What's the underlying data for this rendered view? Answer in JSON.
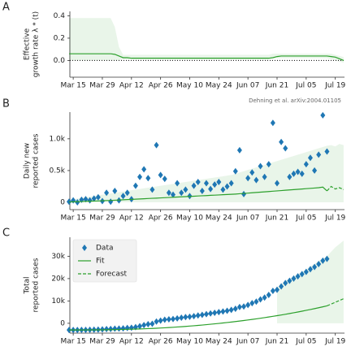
{
  "chart_data": [
    {
      "type": "line",
      "label": "A",
      "ylabel": [
        "Effective",
        "growth rate λ * (t)"
      ],
      "categories": [
        "Mar 13",
        "Mar 15",
        "Mar 17",
        "Mar 19",
        "Mar 21",
        "Mar 23",
        "Mar 25",
        "Mar 27",
        "Mar 29",
        "Mar 31",
        "Apr 02",
        "Apr 04",
        "Apr 06",
        "Apr 08",
        "Apr 10",
        "Apr 12",
        "Apr 14",
        "Apr 16",
        "Apr 18",
        "Apr 20",
        "Apr 22",
        "Apr 24",
        "Apr 26",
        "Apr 28",
        "Apr 30",
        "May 02",
        "May 04",
        "May 06",
        "May 08",
        "May 10",
        "May 12",
        "May 14",
        "May 16",
        "May 18",
        "May 20",
        "May 22",
        "May 24",
        "May 26",
        "May 28",
        "May 30",
        "Jun 01",
        "Jun 03",
        "Jun 05",
        "Jun 07",
        "Jun 09",
        "Jun 11",
        "Jun 13",
        "Jun 15",
        "Jun 17",
        "Jun 19",
        "Jun 21",
        "Jun 23",
        "Jun 25",
        "Jun 27",
        "Jun 29",
        "Jul 01",
        "Jul 03",
        "Jul 05",
        "Jul 07",
        "Jul 09",
        "Jul 11",
        "Jul 13",
        "Jul 15",
        "Jul 17",
        "Jul 19",
        "Jul 21",
        "Jul 23"
      ],
      "xticks": [
        "Mar 15",
        "Mar 29",
        "Apr 12",
        "Apr 26",
        "May 10",
        "May 24",
        "Jun 07",
        "Jun 21",
        "Jul 05",
        "Jul 19"
      ],
      "ylim": [
        -0.15,
        0.44
      ],
      "yticks": [
        {
          "value": 0,
          "label": "0.0"
        },
        {
          "value": 0.2,
          "label": "0.2"
        },
        {
          "value": 0.4,
          "label": "0.4"
        }
      ],
      "hline": 0,
      "band": {
        "color": "#2ca02c",
        "upper": [
          0.38,
          0.38,
          0.38,
          0.38,
          0.38,
          0.38,
          0.38,
          0.38,
          0.38,
          0.38,
          0.38,
          0.3,
          0.12,
          0.05,
          0.05,
          0.05,
          0.05,
          0.05,
          0.05,
          0.05,
          0.05,
          0.05,
          0.05,
          0.05,
          0.05,
          0.05,
          0.05,
          0.05,
          0.05,
          0.05,
          0.05,
          0.05,
          0.05,
          0.05,
          0.05,
          0.05,
          0.05,
          0.05,
          0.05,
          0.05,
          0.05,
          0.05,
          0.05,
          0.05,
          0.05,
          0.05,
          0.05,
          0.05,
          0.05,
          0.06,
          0.06,
          0.06,
          0.06,
          0.06,
          0.06,
          0.06,
          0.06,
          0.06,
          0.06,
          0.06,
          0.06,
          0.06,
          0.06,
          0.06,
          0.05,
          0.04,
          0.03
        ],
        "lower": [
          0,
          0,
          0,
          0,
          0,
          0,
          0,
          0,
          0,
          0,
          0,
          0,
          0,
          0.01,
          0.01,
          0.01,
          0.01,
          0.01,
          0.01,
          0.01,
          0.01,
          0.01,
          0.01,
          0.01,
          0.01,
          0.01,
          0.01,
          0.01,
          0.01,
          0.01,
          0.01,
          0.01,
          0.01,
          0.01,
          0.01,
          0.01,
          0.01,
          0.01,
          0.01,
          0.01,
          0.01,
          0.01,
          0.01,
          0.01,
          0.01,
          0.01,
          0.01,
          0.01,
          0.01,
          0.02,
          0.02,
          0.02,
          0.02,
          0.02,
          0.02,
          0.02,
          0.02,
          0.02,
          0.02,
          0.02,
          0.02,
          0.02,
          0.02,
          0.01,
          0,
          -0.01,
          -0.02
        ]
      },
      "series": [
        {
          "kind": "line",
          "color": "#2ca02c",
          "values": [
            0.06,
            0.06,
            0.06,
            0.06,
            0.06,
            0.06,
            0.06,
            0.06,
            0.06,
            0.06,
            0.06,
            0.055,
            0.04,
            0.025,
            0.025,
            0.02,
            0.02,
            0.02,
            0.02,
            0.02,
            0.02,
            0.02,
            0.02,
            0.02,
            0.02,
            0.02,
            0.02,
            0.02,
            0.02,
            0.02,
            0.02,
            0.02,
            0.02,
            0.02,
            0.02,
            0.02,
            0.02,
            0.02,
            0.02,
            0.02,
            0.02,
            0.02,
            0.02,
            0.02,
            0.02,
            0.02,
            0.02,
            0.02,
            0.02,
            0.025,
            0.035,
            0.04,
            0.04,
            0.04,
            0.04,
            0.04,
            0.04,
            0.04,
            0.04,
            0.04,
            0.04,
            0.04,
            0.04,
            0.035,
            0.03,
            0.015,
            0
          ]
        }
      ]
    },
    {
      "type": "scatter",
      "label": "B",
      "ylabel": [
        "Daily new",
        "reported cases"
      ],
      "annotation": "Dehning et al. arXiv:2004.01105",
      "categories": [
        "Mar 13",
        "Mar 15",
        "Mar 17",
        "Mar 19",
        "Mar 21",
        "Mar 23",
        "Mar 25",
        "Mar 27",
        "Mar 29",
        "Mar 31",
        "Apr 02",
        "Apr 04",
        "Apr 06",
        "Apr 08",
        "Apr 10",
        "Apr 12",
        "Apr 14",
        "Apr 16",
        "Apr 18",
        "Apr 20",
        "Apr 22",
        "Apr 24",
        "Apr 26",
        "Apr 28",
        "Apr 30",
        "May 02",
        "May 04",
        "May 06",
        "May 08",
        "May 10",
        "May 12",
        "May 14",
        "May 16",
        "May 18",
        "May 20",
        "May 22",
        "May 24",
        "May 26",
        "May 28",
        "May 30",
        "Jun 01",
        "Jun 03",
        "Jun 05",
        "Jun 07",
        "Jun 09",
        "Jun 11",
        "Jun 13",
        "Jun 15",
        "Jun 17",
        "Jun 19",
        "Jun 21",
        "Jun 23",
        "Jun 25",
        "Jun 27",
        "Jun 29",
        "Jul 01",
        "Jul 03",
        "Jul 05",
        "Jul 07",
        "Jul 09",
        "Jul 11",
        "Jul 13",
        "Jul 15",
        "Jul 17",
        "Jul 19",
        "Jul 21",
        "Jul 23"
      ],
      "xticks": [
        "Mar 15",
        "Mar 29",
        "Apr 12",
        "Apr 26",
        "May 10",
        "May 24",
        "Jun 07",
        "Jun 21",
        "Jul 05",
        "Jul 19"
      ],
      "ylim": [
        -115,
        1420
      ],
      "yticks": [
        0,
        {
          "value": 500,
          "label": "0.5k"
        },
        {
          "value": 1000,
          "label": "1.0k"
        }
      ],
      "band": {
        "color": "#2ca02c",
        "upper": [
          40,
          50,
          60,
          70,
          80,
          90,
          100,
          110,
          120,
          130,
          140,
          150,
          160,
          170,
          180,
          190,
          200,
          210,
          220,
          230,
          240,
          250,
          260,
          270,
          280,
          290,
          300,
          310,
          320,
          330,
          340,
          350,
          360,
          370,
          380,
          390,
          400,
          410,
          420,
          430,
          450,
          470,
          490,
          510,
          530,
          550,
          570,
          590,
          610,
          630,
          650,
          670,
          690,
          710,
          730,
          750,
          770,
          790,
          810,
          830,
          850,
          870,
          890,
          900,
          880,
          920,
          900
        ]
      },
      "series": [
        {
          "kind": "scatter",
          "marker": "diamond",
          "color": "#1f77b4",
          "values": [
            10,
            30,
            0,
            40,
            50,
            30,
            60,
            80,
            20,
            150,
            10,
            180,
            30,
            100,
            150,
            50,
            260,
            400,
            520,
            380,
            200,
            900,
            430,
            370,
            150,
            120,
            300,
            150,
            200,
            100,
            260,
            320,
            180,
            300,
            210,
            280,
            320,
            200,
            250,
            300,
            490,
            820,
            130,
            380,
            470,
            350,
            570,
            400,
            600,
            1250,
            300,
            950,
            850,
            400,
            450,
            480,
            450,
            600,
            700,
            500,
            750,
            1370,
            800,
            null,
            null,
            null,
            null
          ]
        },
        {
          "kind": "line",
          "color": "#2ca02c",
          "values": [
            5,
            8,
            10,
            12,
            15,
            18,
            20,
            22,
            25,
            28,
            30,
            33,
            36,
            40,
            43,
            46,
            50,
            53,
            56,
            60,
            63,
            66,
            70,
            73,
            76,
            80,
            83,
            86,
            90,
            93,
            96,
            100,
            103,
            106,
            110,
            113,
            116,
            120,
            123,
            126,
            130,
            135,
            140,
            145,
            150,
            155,
            160,
            165,
            170,
            175,
            180,
            185,
            190,
            195,
            200,
            205,
            210,
            215,
            220,
            225,
            230,
            240,
            180,
            null,
            null,
            null,
            null
          ]
        },
        {
          "kind": "line",
          "dash": true,
          "color": "#2ca02c",
          "values": [
            null,
            null,
            null,
            null,
            null,
            null,
            null,
            null,
            null,
            null,
            null,
            null,
            null,
            null,
            null,
            null,
            null,
            null,
            null,
            null,
            null,
            null,
            null,
            null,
            null,
            null,
            null,
            null,
            null,
            null,
            null,
            null,
            null,
            null,
            null,
            null,
            null,
            null,
            null,
            null,
            null,
            null,
            null,
            null,
            null,
            null,
            null,
            null,
            null,
            null,
            null,
            null,
            null,
            null,
            null,
            null,
            null,
            null,
            null,
            null,
            null,
            null,
            180,
            250,
            210,
            230,
            200
          ]
        }
      ]
    },
    {
      "type": "scatter",
      "label": "C",
      "ylabel": [
        "Total",
        "reported cases"
      ],
      "legend": "upper left",
      "categories": [
        "Mar 13",
        "Mar 15",
        "Mar 17",
        "Mar 19",
        "Mar 21",
        "Mar 23",
        "Mar 25",
        "Mar 27",
        "Mar 29",
        "Mar 31",
        "Apr 02",
        "Apr 04",
        "Apr 06",
        "Apr 08",
        "Apr 10",
        "Apr 12",
        "Apr 14",
        "Apr 16",
        "Apr 18",
        "Apr 20",
        "Apr 22",
        "Apr 24",
        "Apr 26",
        "Apr 28",
        "Apr 30",
        "May 02",
        "May 04",
        "May 06",
        "May 08",
        "May 10",
        "May 12",
        "May 14",
        "May 16",
        "May 18",
        "May 20",
        "May 22",
        "May 24",
        "May 26",
        "May 28",
        "May 30",
        "Jun 01",
        "Jun 03",
        "Jun 05",
        "Jun 07",
        "Jun 09",
        "Jun 11",
        "Jun 13",
        "Jun 15",
        "Jun 17",
        "Jun 19",
        "Jun 21",
        "Jun 23",
        "Jun 25",
        "Jun 27",
        "Jun 29",
        "Jul 01",
        "Jul 03",
        "Jul 05",
        "Jul 07",
        "Jul 09",
        "Jul 11",
        "Jul 13",
        "Jul 15",
        "Jul 17",
        "Jul 19",
        "Jul 21",
        "Jul 23"
      ],
      "xticks": [
        "Mar 15",
        "Mar 29",
        "Apr 12",
        "Apr 26",
        "May 10",
        "May 24",
        "Jun 07",
        "Jun 21",
        "Jul 05",
        "Jul 19"
      ],
      "ylim": [
        -4400,
        38500
      ],
      "yticks": [
        0,
        {
          "value": 10000,
          "label": "10k"
        },
        {
          "value": 20000,
          "label": "20k"
        },
        {
          "value": 30000,
          "label": "30k"
        }
      ],
      "band": {
        "color": "#2ca02c",
        "upper": [
          null,
          null,
          null,
          null,
          null,
          null,
          null,
          null,
          null,
          null,
          null,
          null,
          null,
          null,
          null,
          null,
          null,
          null,
          null,
          null,
          null,
          null,
          null,
          null,
          null,
          null,
          null,
          null,
          null,
          null,
          null,
          null,
          null,
          null,
          null,
          null,
          null,
          null,
          null,
          null,
          null,
          null,
          null,
          null,
          null,
          null,
          null,
          null,
          null,
          null,
          16000,
          17500,
          19000,
          20000,
          21000,
          22000,
          23000,
          24000,
          25500,
          26500,
          28000,
          29000,
          30000,
          32000,
          34000,
          35500,
          37000
        ]
      },
      "series": [
        {
          "name": "Data",
          "kind": "scatter",
          "marker": "diamond",
          "color": "#1f77b4",
          "values": [
            -3000,
            -2990,
            -2980,
            -2960,
            -2940,
            -2900,
            -2860,
            -2800,
            -2740,
            -2600,
            -2550,
            -2400,
            -2350,
            -2250,
            -2100,
            -2000,
            -1700,
            -1300,
            -800,
            -400,
            -200,
            800,
            1200,
            1600,
            1800,
            1900,
            2200,
            2500,
            2800,
            2900,
            3200,
            3500,
            3800,
            4100,
            4400,
            4700,
            5000,
            5300,
            5600,
            6000,
            6500,
            7300,
            7500,
            8200,
            9000,
            9700,
            10700,
            11500,
            12700,
            14500,
            15000,
            16500,
            18000,
            19000,
            20000,
            21000,
            22000,
            23000,
            24200,
            25200,
            26500,
            28000,
            28800,
            null,
            null,
            null,
            null
          ]
        },
        {
          "name": "Fit",
          "kind": "line",
          "color": "#2ca02c",
          "values": [
            -3000,
            -2995,
            -2990,
            -2985,
            -2975,
            -2965,
            -2950,
            -2935,
            -2915,
            -2890,
            -2860,
            -2830,
            -2790,
            -2750,
            -2700,
            -2650,
            -2590,
            -2530,
            -2460,
            -2380,
            -2300,
            -2210,
            -2110,
            -2010,
            -1900,
            -1780,
            -1660,
            -1530,
            -1390,
            -1250,
            -1100,
            -940,
            -780,
            -610,
            -430,
            -250,
            -60,
            140,
            340,
            550,
            770,
            1000,
            1240,
            1480,
            1730,
            1990,
            2260,
            2540,
            2820,
            3110,
            3410,
            3720,
            4040,
            4370,
            4710,
            5060,
            5420,
            5790,
            6170,
            6560,
            6960,
            7370,
            7790,
            null,
            null,
            null,
            null
          ]
        },
        {
          "name": "Forecast",
          "kind": "line",
          "dash": true,
          "color": "#2ca02c",
          "values": [
            null,
            null,
            null,
            null,
            null,
            null,
            null,
            null,
            null,
            null,
            null,
            null,
            null,
            null,
            null,
            null,
            null,
            null,
            null,
            null,
            null,
            null,
            null,
            null,
            null,
            null,
            null,
            null,
            null,
            null,
            null,
            null,
            null,
            null,
            null,
            null,
            null,
            null,
            null,
            null,
            null,
            null,
            null,
            null,
            null,
            null,
            null,
            null,
            null,
            null,
            null,
            null,
            null,
            null,
            null,
            null,
            null,
            null,
            null,
            null,
            null,
            null,
            7790,
            8600,
            9400,
            10200,
            11000
          ]
        }
      ]
    }
  ]
}
